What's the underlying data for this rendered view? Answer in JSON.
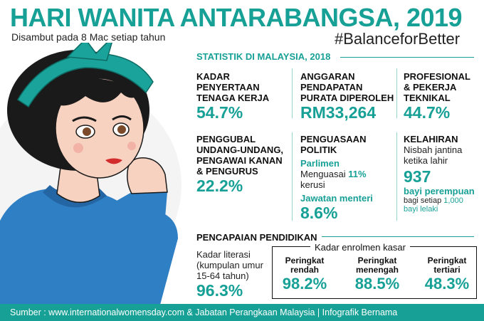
{
  "header": {
    "title": "HARI WANITA ANTARABANGSA, 2019",
    "subtitle": "Disambut pada 8 Mac setiap tahun",
    "hashtag": "#BalanceforBetter"
  },
  "section_title": "STATISTIK DI MALAYSIA, 2018",
  "stats": {
    "labour": {
      "label_lines": [
        "KADAR",
        "PENYERTAAN",
        "TENAGA KERJA"
      ],
      "value": "54.7%"
    },
    "income": {
      "label_lines": [
        "ANGGARAN",
        "PENDAPATAN",
        "PURATA DIPEROLEH"
      ],
      "value": "RM33,264"
    },
    "professional": {
      "label_lines": [
        "PROFESIONAL",
        "& PEKERJA",
        "TEKNIKAL"
      ],
      "value": "44.7%"
    },
    "lawmakers": {
      "label_lines": [
        "PENGGUBAL",
        "UNDANG-UNDANG,",
        "PENGAWAI KANAN",
        "& PENGURUS"
      ],
      "value": "22.2%"
    },
    "politics": {
      "label_lines": [
        "PENGUASAAN",
        "POLITIK"
      ],
      "parliament_label": "Parlimen",
      "parliament_text": "Menguasai",
      "parliament_value": "11%",
      "parliament_unit": "kerusi",
      "minister_label": "Jawatan menteri",
      "minister_value": "8.6%"
    },
    "birth": {
      "label": "KELAHIRAN",
      "desc_lines": [
        "Nisbah jantina",
        "ketika lahir"
      ],
      "value": "937",
      "value_unit": "bayi perempuan",
      "note_prefix": "bagi setiap",
      "note_number": "1,000",
      "note_suffix": "bayi lelaki"
    }
  },
  "education": {
    "title": "PENCAPAIAN PENDIDIKAN",
    "literacy_lines": [
      "Kadar literasi",
      "(kumpulan umur",
      "15-64 tahun)"
    ],
    "literacy_value": "96.3%",
    "enrolment_title": "Kadar enrolmen kasar",
    "enrolment": [
      {
        "word": "Peringkat",
        "level": "rendah",
        "value": "98.2%"
      },
      {
        "word": "Peringkat",
        "level": "menengah",
        "value": "88.5%"
      },
      {
        "word": "Peringkat",
        "level": "tertiari",
        "value": "48.3%"
      }
    ]
  },
  "footer": "Sumber : www.internationalwomensday.com & Jabatan Perangkaan Malaysia    |    Infografik Bernama",
  "colors": {
    "accent": "#17a096",
    "shirt": "#2f7fc4",
    "skin": "#f7d2c0",
    "hair": "#1a1a1a"
  }
}
